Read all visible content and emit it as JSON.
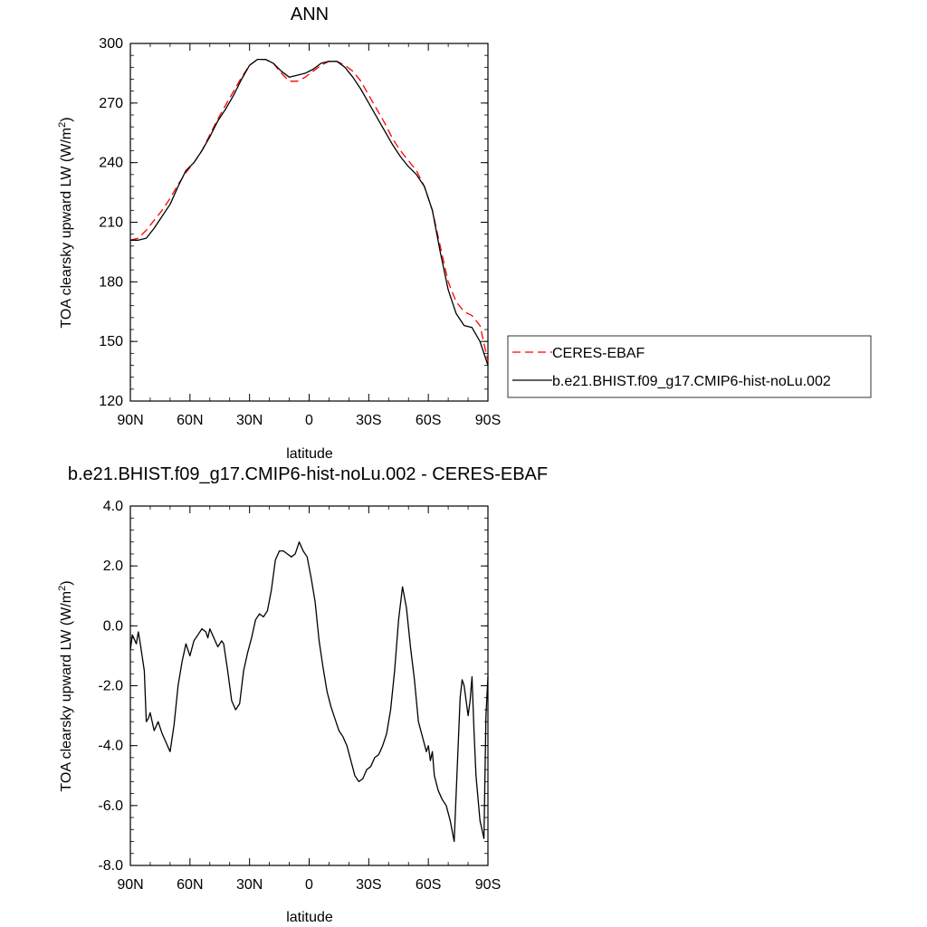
{
  "chart_data": [
    {
      "type": "line",
      "title": "ANN",
      "xlabel": "latitude",
      "ylabel": "TOA clearsky upward LW (W/m²)",
      "xlim": [
        90,
        -90
      ],
      "ylim": [
        120,
        300
      ],
      "x_ticks": [
        {
          "value": 90,
          "label": "90N"
        },
        {
          "value": 60,
          "label": "60N"
        },
        {
          "value": 30,
          "label": "30N"
        },
        {
          "value": 0,
          "label": "0"
        },
        {
          "value": -30,
          "label": "30S"
        },
        {
          "value": -60,
          "label": "60S"
        },
        {
          "value": -90,
          "label": "90S"
        }
      ],
      "y_ticks": [
        {
          "value": 300,
          "label": "300"
        },
        {
          "value": 270,
          "label": "270"
        },
        {
          "value": 240,
          "label": "240"
        },
        {
          "value": 210,
          "label": "210"
        },
        {
          "value": 180,
          "label": "180"
        },
        {
          "value": 150,
          "label": "150"
        },
        {
          "value": 120,
          "label": "120"
        }
      ],
      "legend": {
        "position": "right",
        "entries": [
          "CERES-EBAF",
          "b.e21.BHIST.f09_g17.CMIP6-hist-noLu.002"
        ]
      },
      "series": [
        {
          "name": "CERES-EBAF",
          "color": "#ff0000",
          "dash": true,
          "x": [
            90,
            86,
            82,
            78,
            74,
            70,
            66,
            62,
            58,
            54,
            50,
            46,
            42,
            38,
            34,
            30,
            26,
            22,
            18,
            14,
            10,
            6,
            2,
            -2,
            -6,
            -10,
            -14,
            -18,
            -22,
            -26,
            -30,
            -34,
            -38,
            -42,
            -46,
            -50,
            -54,
            -58,
            -62,
            -66,
            -70,
            -74,
            -78,
            -82,
            -86,
            -90
          ],
          "y": [
            201,
            202,
            206,
            211,
            216,
            222,
            229,
            235,
            240,
            246,
            254,
            262,
            269,
            276,
            283,
            289,
            292,
            292,
            290,
            285,
            281,
            281,
            283,
            286,
            289,
            291,
            291,
            289,
            286,
            281,
            274,
            267,
            260,
            252,
            246,
            241,
            236,
            228,
            216,
            198,
            180,
            170,
            165,
            163,
            158,
            140
          ]
        },
        {
          "name": "b.e21.BHIST.f09_g17.CMIP6-hist-noLu.002",
          "color": "#000000",
          "dash": false,
          "x": [
            90,
            86,
            82,
            78,
            74,
            70,
            66,
            62,
            58,
            54,
            50,
            46,
            42,
            38,
            34,
            30,
            26,
            22,
            18,
            14,
            10,
            6,
            2,
            -2,
            -6,
            -10,
            -14,
            -18,
            -22,
            -26,
            -30,
            -34,
            -38,
            -42,
            -46,
            -50,
            -54,
            -58,
            -62,
            -66,
            -70,
            -74,
            -78,
            -82,
            -86,
            -90
          ],
          "y": [
            201,
            201,
            202,
            207,
            213,
            219,
            228,
            236,
            240,
            246,
            253,
            261,
            267,
            274,
            282,
            289,
            292,
            292,
            290,
            286,
            283,
            284,
            285,
            287,
            290,
            291,
            291,
            288,
            283,
            277,
            270,
            263,
            256,
            249,
            243,
            238,
            234,
            228,
            216,
            195,
            176,
            164,
            158,
            157,
            150,
            138
          ]
        }
      ]
    },
    {
      "type": "line",
      "title": "b.e21.BHIST.f09_g17.CMIP6-hist-noLu.002 - CERES-EBAF",
      "xlabel": "latitude",
      "ylabel": "TOA clearsky upward LW (W/m²)",
      "xlim": [
        90,
        -90
      ],
      "ylim": [
        -8,
        4
      ],
      "x_ticks": [
        {
          "value": 90,
          "label": "90N"
        },
        {
          "value": 60,
          "label": "60N"
        },
        {
          "value": 30,
          "label": "30N"
        },
        {
          "value": 0,
          "label": "0"
        },
        {
          "value": -30,
          "label": "30S"
        },
        {
          "value": -60,
          "label": "60S"
        },
        {
          "value": -90,
          "label": "90S"
        }
      ],
      "y_ticks": [
        {
          "value": 4,
          "label": "4.0"
        },
        {
          "value": 2,
          "label": "2.0"
        },
        {
          "value": 0,
          "label": "0.0"
        },
        {
          "value": -2,
          "label": "-2.0"
        },
        {
          "value": -4,
          "label": "-4.0"
        },
        {
          "value": -6,
          "label": "-6.0"
        },
        {
          "value": -8,
          "label": "-8.0"
        }
      ],
      "series": [
        {
          "color": "#000000",
          "dash": false,
          "x": [
            90,
            89,
            87,
            86,
            85,
            83,
            82,
            81,
            80,
            78,
            76,
            74,
            72,
            70,
            68,
            66,
            64,
            62,
            61,
            60,
            58,
            56,
            54,
            52,
            51,
            50,
            48,
            46,
            44,
            43,
            41,
            39,
            37,
            35,
            33,
            31,
            29,
            27,
            25,
            23,
            21,
            19,
            17,
            15,
            13,
            11,
            9,
            7,
            5,
            3,
            1,
            -1,
            -3,
            -5,
            -7,
            -9,
            -11,
            -13,
            -15,
            -17,
            -19,
            -21,
            -23,
            -25,
            -27,
            -29,
            -31,
            -33,
            -35,
            -37,
            -39,
            -41,
            -43,
            -45,
            -47,
            -49,
            -51,
            -53,
            -55,
            -57,
            -59,
            -60,
            -61,
            -62,
            -63,
            -65,
            -67,
            -69,
            -71,
            -73,
            -75,
            -76,
            -77,
            -78,
            -80,
            -81,
            -82,
            -83,
            -84,
            -86,
            -88,
            -89,
            -90
          ],
          "y": [
            -0.8,
            -0.3,
            -0.6,
            -0.2,
            -0.6,
            -1.5,
            -3.2,
            -3.1,
            -2.9,
            -3.5,
            -3.2,
            -3.6,
            -3.9,
            -4.2,
            -3.3,
            -2.0,
            -1.2,
            -0.6,
            -0.8,
            -1.0,
            -0.5,
            -0.3,
            -0.1,
            -0.2,
            -0.4,
            -0.1,
            -0.4,
            -0.7,
            -0.5,
            -0.6,
            -1.5,
            -2.5,
            -2.8,
            -2.6,
            -1.5,
            -0.9,
            -0.4,
            0.2,
            0.4,
            0.3,
            0.5,
            1.2,
            2.2,
            2.5,
            2.5,
            2.4,
            2.3,
            2.4,
            2.8,
            2.5,
            2.3,
            1.6,
            0.8,
            -0.5,
            -1.4,
            -2.2,
            -2.7,
            -3.1,
            -3.5,
            -3.7,
            -4.0,
            -4.5,
            -5.0,
            -5.2,
            -5.1,
            -4.8,
            -4.7,
            -4.4,
            -4.3,
            -4.0,
            -3.6,
            -2.8,
            -1.5,
            0.2,
            1.3,
            0.6,
            -0.7,
            -1.8,
            -3.2,
            -3.7,
            -4.2,
            -4.0,
            -4.5,
            -4.2,
            -5.0,
            -5.5,
            -5.8,
            -6.0,
            -6.5,
            -7.2,
            -4.0,
            -2.4,
            -1.8,
            -2.0,
            -3.0,
            -2.5,
            -1.7,
            -3.5,
            -5.0,
            -6.5,
            -7.1,
            -3.0,
            -1.7
          ]
        }
      ]
    }
  ]
}
